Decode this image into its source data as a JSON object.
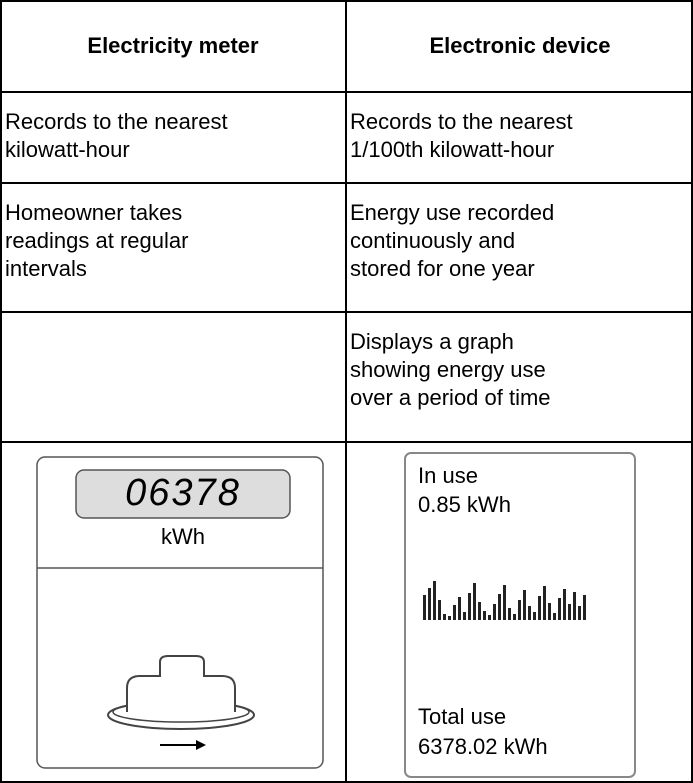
{
  "header": {
    "columns": [
      "Electricity meter",
      "Electronic device"
    ]
  },
  "table": {
    "rows": [
      {
        "meter": [
          "Records to the nearest",
          "kilowatt-hour"
        ],
        "device": [
          "Records to the nearest",
          "1/100th kilowatt-hour"
        ]
      },
      {
        "meter": [
          "Homeowner takes",
          "readings at regular",
          "intervals"
        ],
        "device": [
          "Energy use recorded",
          "continuously and",
          "stored for one year"
        ]
      },
      {
        "device": [
          "Displays a graph",
          "showing energy use",
          "over a period of time"
        ]
      }
    ]
  },
  "meter_display": {
    "reading": "06378",
    "unit": "kWh"
  },
  "device_display": {
    "in_use_label": "In use",
    "in_use_value": "0.85 kWh",
    "total_label": "Total use",
    "total_value": "6378.02 kWh"
  }
}
